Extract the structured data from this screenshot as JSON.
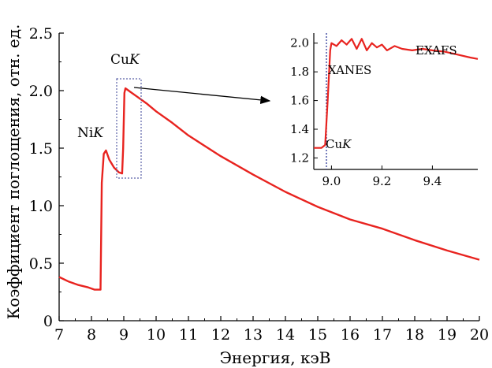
{
  "chart_data": [
    {
      "type": "line",
      "xlabel": "Энергия, кэВ",
      "ylabel": "Коэффициент поглощения, отн. ед.",
      "xlim": [
        7,
        20
      ],
      "ylim": [
        0,
        2.5
      ],
      "xticks": [
        "7",
        "8",
        "9",
        "10",
        "11",
        "12",
        "13",
        "14",
        "15",
        "16",
        "17",
        "18",
        "19",
        "20"
      ],
      "yticks": [
        "0",
        "0.5",
        "1.0",
        "1.5",
        "2.0",
        "2.5"
      ],
      "series": [
        {
          "color": "#e8231f",
          "x": [
            7.0,
            7.3,
            7.6,
            7.9,
            8.1,
            8.28,
            8.32,
            8.38,
            8.45,
            8.55,
            8.7,
            8.85,
            8.95,
            8.98,
            9.02,
            9.05,
            9.1,
            9.2,
            9.4,
            9.7,
            10.0,
            10.5,
            11.0,
            12.0,
            13.0,
            14.0,
            15.0,
            16.0,
            17.0,
            18.0,
            19.0,
            20.0
          ],
          "y": [
            0.38,
            0.34,
            0.31,
            0.29,
            0.27,
            0.27,
            1.2,
            1.45,
            1.48,
            1.4,
            1.33,
            1.29,
            1.28,
            1.5,
            1.98,
            2.02,
            2.01,
            1.99,
            1.95,
            1.89,
            1.82,
            1.72,
            1.61,
            1.43,
            1.27,
            1.12,
            0.99,
            0.88,
            0.8,
            0.7,
            0.61,
            0.53
          ]
        }
      ],
      "annotations": [
        "NiK",
        "CuK"
      ]
    },
    {
      "type": "line",
      "xlim": [
        8.93,
        9.58
      ],
      "ylim": [
        1.12,
        2.07
      ],
      "xticks": [
        "9.0",
        "9.2",
        "9.4"
      ],
      "yticks": [
        "1.2",
        "1.4",
        "1.6",
        "1.8",
        "2.0"
      ],
      "edge_marker_x": 8.98,
      "series": [
        {
          "color": "#e8231f",
          "x": [
            8.93,
            8.96,
            8.975,
            8.985,
            8.995,
            9.0,
            9.02,
            9.04,
            9.06,
            9.08,
            9.1,
            9.12,
            9.14,
            9.16,
            9.18,
            9.2,
            9.22,
            9.25,
            9.28,
            9.32,
            9.36,
            9.4,
            9.45,
            9.5,
            9.55,
            9.58
          ],
          "y": [
            1.27,
            1.27,
            1.29,
            1.6,
            1.95,
            2.0,
            1.98,
            2.02,
            1.99,
            2.03,
            1.96,
            2.03,
            1.95,
            2.0,
            1.97,
            1.99,
            1.95,
            1.98,
            1.96,
            1.95,
            1.96,
            1.95,
            1.94,
            1.92,
            1.9,
            1.89
          ]
        }
      ],
      "annotations": [
        "XANES",
        "EXAFS",
        "CuK"
      ]
    }
  ]
}
